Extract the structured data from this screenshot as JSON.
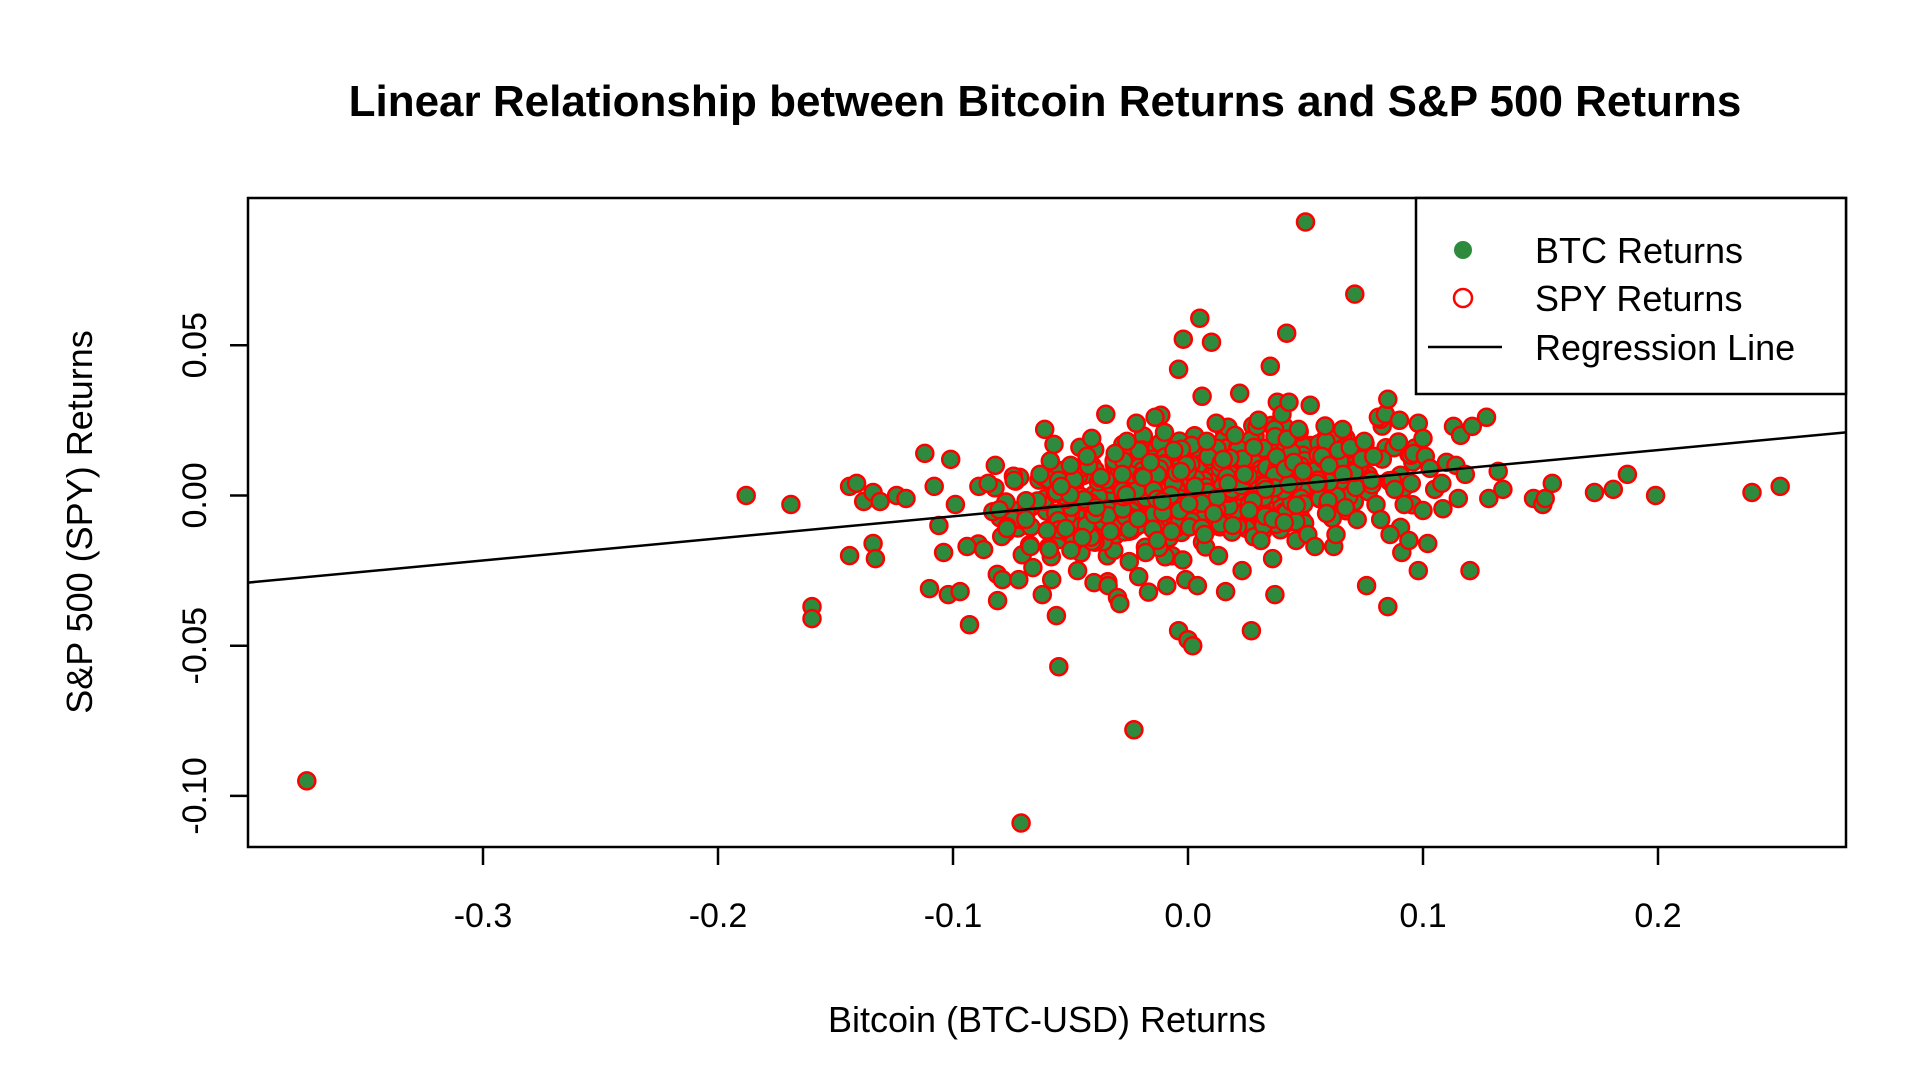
{
  "chart_data": {
    "type": "scatter",
    "title": "Linear Relationship between Bitcoin Returns and S&P 500 Returns",
    "xlabel": "Bitcoin (BTC-USD) Returns",
    "ylabel": "S&P 500 (SPY) Returns",
    "xlim": [
      -0.4,
      0.28
    ],
    "ylim": [
      -0.117,
      0.099
    ],
    "x_ticks": [
      -0.3,
      -0.2,
      -0.1,
      0.0,
      0.1,
      0.2
    ],
    "x_tick_labels": [
      "-0.3",
      "-0.2",
      "-0.1",
      "0.0",
      "0.1",
      "0.2"
    ],
    "y_ticks": [
      -0.1,
      -0.05,
      0.0,
      0.05
    ],
    "y_tick_labels": [
      "-0.10",
      "-0.05",
      "0.00",
      "0.05"
    ],
    "grid": false,
    "legend": {
      "position": "top-right",
      "entries": [
        {
          "label": "BTC Returns",
          "style": "filled-dot",
          "color": "#2e8b3e"
        },
        {
          "label": "SPY Returns",
          "style": "open-circle",
          "color": "#ff0000"
        },
        {
          "label": "Regression Line",
          "style": "line",
          "color": "#000000"
        }
      ]
    },
    "regression_line": {
      "x": [
        -0.4,
        0.28
      ],
      "y": [
        -0.029,
        0.021
      ]
    },
    "point_style": {
      "fill": "#2e8b3e",
      "stroke": "#ff0000"
    },
    "series": [
      {
        "name": "BTC Returns",
        "points": [
          [
            -0.375,
            -0.095
          ],
          [
            -0.188,
            0.0
          ],
          [
            -0.169,
            -0.003
          ],
          [
            -0.16,
            -0.037
          ],
          [
            -0.16,
            -0.041
          ],
          [
            -0.144,
            0.003
          ],
          [
            -0.144,
            -0.02
          ],
          [
            -0.141,
            0.004
          ],
          [
            -0.138,
            -0.002
          ],
          [
            -0.134,
            0.001
          ],
          [
            -0.134,
            -0.016
          ],
          [
            -0.133,
            -0.021
          ],
          [
            -0.131,
            -0.002
          ],
          [
            -0.124,
            0.0
          ],
          [
            -0.12,
            -0.001
          ],
          [
            -0.112,
            0.014
          ],
          [
            -0.11,
            -0.031
          ],
          [
            -0.108,
            0.003
          ],
          [
            -0.106,
            -0.01
          ],
          [
            -0.104,
            -0.019
          ],
          [
            -0.102,
            -0.033
          ],
          [
            -0.101,
            0.012
          ],
          [
            -0.099,
            -0.003
          ],
          [
            -0.097,
            -0.032
          ],
          [
            -0.094,
            -0.017
          ],
          [
            -0.093,
            -0.043
          ],
          [
            -0.089,
            0.003
          ],
          [
            -0.087,
            -0.018
          ],
          [
            -0.085,
            0.004
          ],
          [
            -0.082,
            0.01
          ],
          [
            -0.081,
            -0.035
          ],
          [
            -0.079,
            -0.028
          ],
          [
            -0.077,
            -0.011
          ],
          [
            -0.074,
            0.005
          ],
          [
            -0.072,
            -0.028
          ],
          [
            -0.071,
            -0.109
          ],
          [
            -0.069,
            -0.008
          ],
          [
            -0.067,
            -0.017
          ],
          [
            -0.066,
            -0.024
          ],
          [
            -0.063,
            0.007
          ],
          [
            -0.062,
            -0.033
          ],
          [
            -0.061,
            0.022
          ],
          [
            -0.059,
            -0.018
          ],
          [
            -0.058,
            -0.028
          ],
          [
            -0.057,
            0.017
          ],
          [
            -0.056,
            -0.04
          ],
          [
            -0.055,
            -0.057
          ],
          [
            -0.054,
            0.003
          ],
          [
            -0.052,
            -0.011
          ],
          [
            -0.05,
            0.01
          ],
          [
            -0.047,
            -0.025
          ],
          [
            -0.046,
            0.016
          ],
          [
            -0.045,
            -0.014
          ],
          [
            -0.043,
            0.013
          ],
          [
            -0.041,
            0.019
          ],
          [
            -0.04,
            -0.029
          ],
          [
            -0.039,
            -0.004
          ],
          [
            -0.037,
            0.006
          ],
          [
            -0.035,
            0.027
          ],
          [
            -0.034,
            -0.03
          ],
          [
            -0.033,
            -0.012
          ],
          [
            -0.031,
            0.014
          ],
          [
            -0.03,
            -0.034
          ],
          [
            -0.029,
            -0.036
          ],
          [
            -0.028,
            0.007
          ],
          [
            -0.026,
            0.018
          ],
          [
            -0.025,
            -0.022
          ],
          [
            -0.023,
            -0.078
          ],
          [
            -0.022,
            0.024
          ],
          [
            -0.021,
            -0.027
          ],
          [
            -0.019,
            0.006
          ],
          [
            -0.018,
            -0.019
          ],
          [
            -0.016,
            0.011
          ],
          [
            -0.014,
            0.026
          ],
          [
            -0.013,
            -0.015
          ],
          [
            -0.011,
            -0.002
          ],
          [
            -0.01,
            0.021
          ],
          [
            -0.009,
            -0.03
          ],
          [
            -0.007,
            -0.012
          ],
          [
            -0.006,
            0.015
          ],
          [
            -0.004,
            -0.045
          ],
          [
            -0.004,
            0.042
          ],
          [
            -0.003,
            0.008
          ],
          [
            -0.002,
            0.052
          ],
          [
            -0.001,
            -0.028
          ],
          [
            0.0,
            -0.048
          ],
          [
            0.002,
            -0.05
          ],
          [
            0.003,
            0.003
          ],
          [
            0.004,
            -0.03
          ],
          [
            0.005,
            0.059
          ],
          [
            0.006,
            0.033
          ],
          [
            0.007,
            -0.013
          ],
          [
            0.008,
            0.018
          ],
          [
            0.01,
            0.051
          ],
          [
            0.011,
            -0.006
          ],
          [
            0.012,
            0.024
          ],
          [
            0.013,
            -0.02
          ],
          [
            0.015,
            0.012
          ],
          [
            0.016,
            -0.032
          ],
          [
            0.017,
            0.004
          ],
          [
            0.019,
            -0.01
          ],
          [
            0.02,
            0.02
          ],
          [
            0.022,
            0.034
          ],
          [
            0.023,
            -0.025
          ],
          [
            0.024,
            0.007
          ],
          [
            0.026,
            -0.005
          ],
          [
            0.027,
            -0.045
          ],
          [
            0.028,
            0.016
          ],
          [
            0.03,
            0.025
          ],
          [
            0.031,
            -0.015
          ],
          [
            0.033,
            0.002
          ],
          [
            0.035,
            0.043
          ],
          [
            0.036,
            -0.021
          ],
          [
            0.037,
            -0.033
          ],
          [
            0.038,
            0.031
          ],
          [
            0.04,
            0.027
          ],
          [
            0.041,
            -0.009
          ],
          [
            0.042,
            0.054
          ],
          [
            0.043,
            0.031
          ],
          [
            0.045,
            0.011
          ],
          [
            0.046,
            -0.015
          ],
          [
            0.047,
            0.022
          ],
          [
            0.049,
            0.008
          ],
          [
            0.05,
            0.091
          ],
          [
            0.051,
            -0.013
          ],
          [
            0.052,
            0.03
          ],
          [
            0.054,
            -0.017
          ],
          [
            0.055,
            0.004
          ],
          [
            0.057,
            0.013
          ],
          [
            0.059,
            -0.006
          ],
          [
            0.06,
            0.01
          ],
          [
            0.062,
            -0.017
          ],
          [
            0.063,
            -0.013
          ],
          [
            0.064,
            0.015
          ],
          [
            0.066,
            0.007
          ],
          [
            0.067,
            -0.004
          ],
          [
            0.069,
            0.016
          ],
          [
            0.071,
            0.067
          ],
          [
            0.072,
            -0.008
          ],
          [
            0.074,
            0.012
          ],
          [
            0.075,
            0.018
          ],
          [
            0.076,
            -0.03
          ],
          [
            0.078,
            0.005
          ],
          [
            0.079,
            0.013
          ],
          [
            0.08,
            -0.003
          ],
          [
            0.081,
            0.026
          ],
          [
            0.082,
            -0.008
          ],
          [
            0.084,
            0.027
          ],
          [
            0.085,
            -0.037
          ],
          [
            0.085,
            0.032
          ],
          [
            0.086,
            -0.013
          ],
          [
            0.087,
            0.005
          ],
          [
            0.088,
            0.002
          ],
          [
            0.09,
            0.025
          ],
          [
            0.091,
            -0.019
          ],
          [
            0.092,
            -0.003
          ],
          [
            0.094,
            -0.015
          ],
          [
            0.095,
            0.004
          ],
          [
            0.096,
            0.014
          ],
          [
            0.098,
            0.024
          ],
          [
            0.098,
            -0.025
          ],
          [
            0.1,
            0.019
          ],
          [
            0.1,
            -0.005
          ],
          [
            0.101,
            0.013
          ],
          [
            0.102,
            -0.016
          ],
          [
            0.103,
            0.009
          ],
          [
            0.105,
            0.002
          ],
          [
            0.108,
            0.004
          ],
          [
            0.11,
            0.011
          ],
          [
            0.113,
            0.023
          ],
          [
            0.114,
            0.01
          ],
          [
            0.115,
            -0.001
          ],
          [
            0.116,
            0.02
          ],
          [
            0.118,
            0.007
          ],
          [
            0.12,
            -0.025
          ],
          [
            0.121,
            0.023
          ],
          [
            0.127,
            0.026
          ],
          [
            0.128,
            -0.001
          ],
          [
            0.132,
            0.008
          ],
          [
            0.134,
            0.002
          ],
          [
            0.147,
            -0.001
          ],
          [
            0.151,
            -0.003
          ],
          [
            0.152,
            -0.001
          ],
          [
            0.155,
            0.004
          ],
          [
            0.173,
            0.001
          ],
          [
            0.181,
            0.002
          ],
          [
            0.187,
            0.007
          ],
          [
            0.199,
            0.0
          ],
          [
            0.24,
            0.001
          ],
          [
            0.252,
            0.003
          ]
        ]
      },
      {
        "name": "SPY Returns",
        "cluster": {
          "center": [
            0.005,
            0.002
          ],
          "spread": [
            0.038,
            0.01
          ],
          "count": 900
        }
      }
    ]
  }
}
